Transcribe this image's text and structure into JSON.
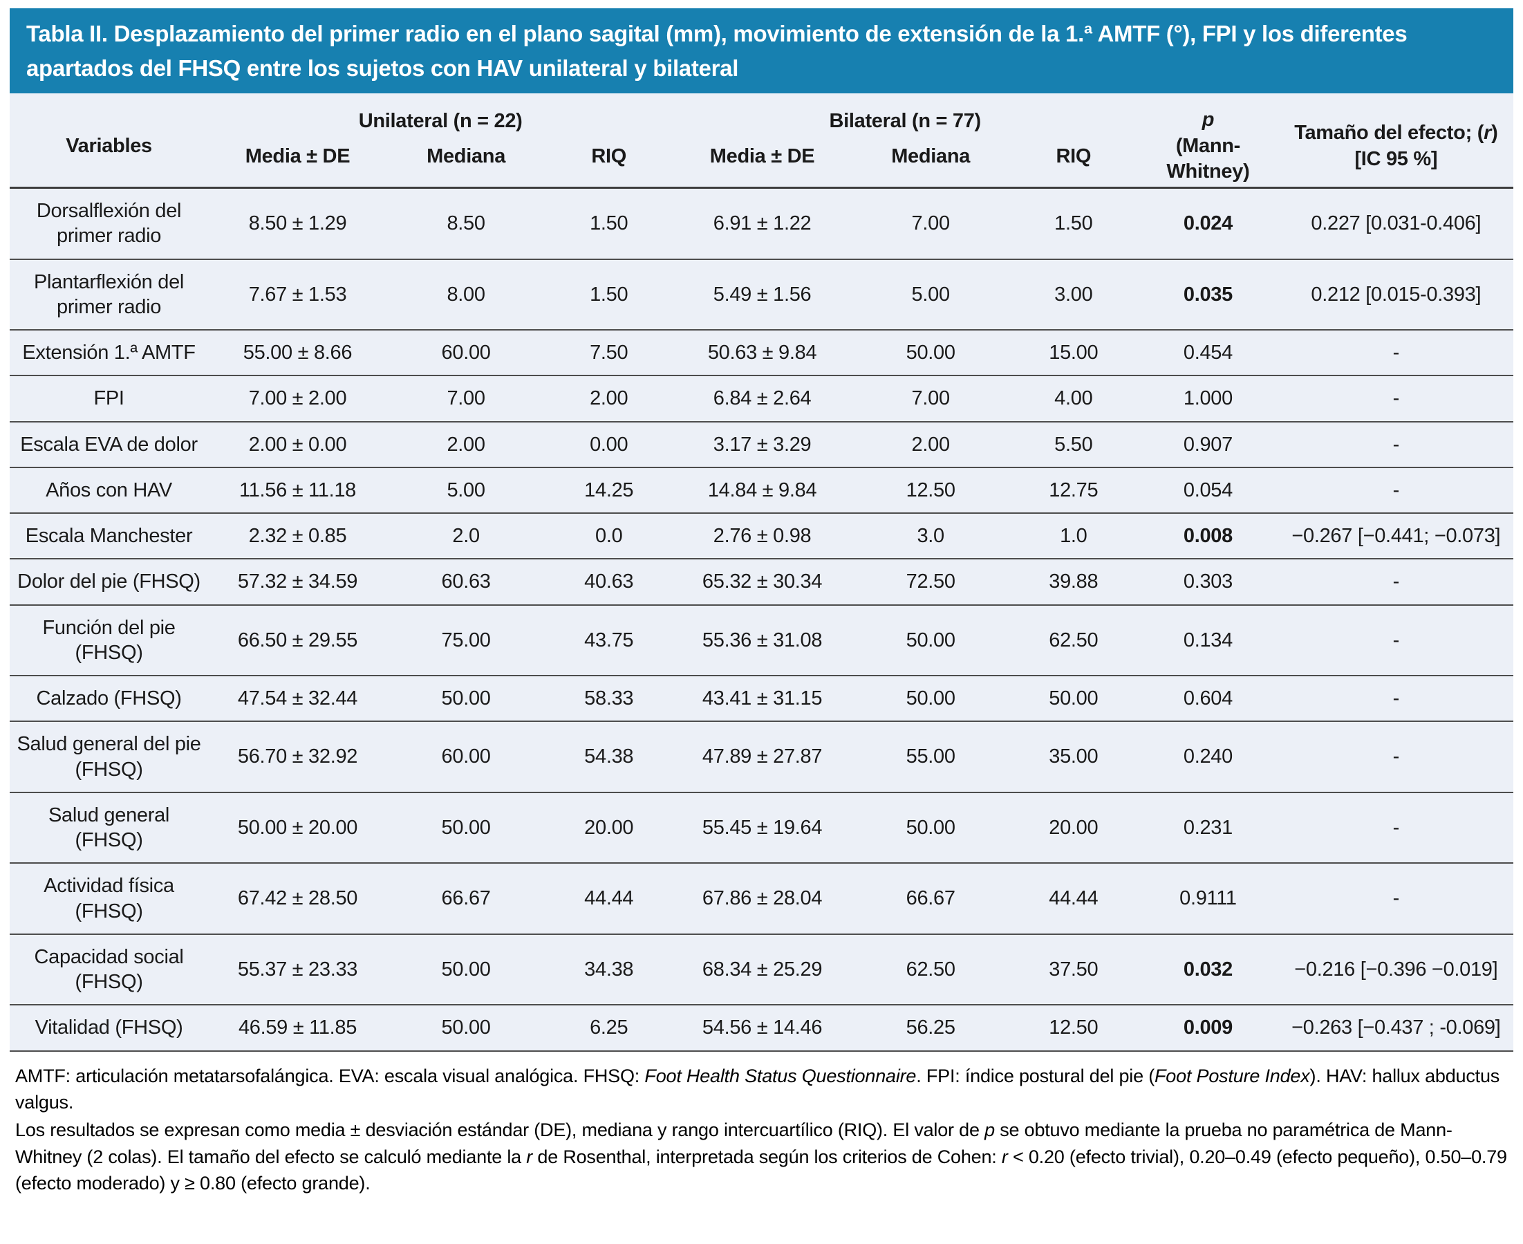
{
  "title": "Tabla II. Desplazamiento del primer radio en el plano sagital (mm), movimiento de extensión de la 1.ª AMTF (°), FPI y los diferentes apartados del FHSQ entre los sujetos con HAV unilateral y bilateral",
  "table": {
    "headers": {
      "variables": "Variables",
      "unilateral": "Unilateral (n = 22)",
      "bilateral": "Bilateral (n = 77)",
      "p_symbol": "p",
      "p_test": "(Mann-Whitney)",
      "effect_pre": "Tamaño del efecto; (",
      "effect_r": "r",
      "effect_post": ")",
      "effect_line2": "[IC 95 %]"
    },
    "sub_headers": [
      "Media ± DE",
      "Mediana",
      "RIQ",
      "Media ± DE",
      "Mediana",
      "RIQ"
    ],
    "rows": [
      {
        "variable": "Dorsalflexión del primer radio",
        "uni": [
          "8.50 ± 1.29",
          "8.50",
          "1.50"
        ],
        "bil": [
          "6.91 ± 1.22",
          "7.00",
          "1.50"
        ],
        "p": "0.024",
        "p_bold": true,
        "effect": "0.227 [0.031-0.406]"
      },
      {
        "variable": "Plantarflexión del primer radio",
        "uni": [
          "7.67 ± 1.53",
          "8.00",
          "1.50"
        ],
        "bil": [
          "5.49 ± 1.56",
          "5.00",
          "3.00"
        ],
        "p": "0.035",
        "p_bold": true,
        "effect": "0.212 [0.015-0.393]"
      },
      {
        "variable": "Extensión 1.ª AMTF",
        "uni": [
          "55.00 ± 8.66",
          "60.00",
          "7.50"
        ],
        "bil": [
          "50.63 ± 9.84",
          "50.00",
          "15.00"
        ],
        "p": "0.454",
        "p_bold": false,
        "effect": "-"
      },
      {
        "variable": "FPI",
        "uni": [
          "7.00 ± 2.00",
          "7.00",
          "2.00"
        ],
        "bil": [
          "6.84 ± 2.64",
          "7.00",
          "4.00"
        ],
        "p": "1.000",
        "p_bold": false,
        "effect": "-"
      },
      {
        "variable": "Escala EVA de dolor",
        "uni": [
          "2.00 ± 0.00",
          "2.00",
          "0.00"
        ],
        "bil": [
          "3.17 ± 3.29",
          "2.00",
          "5.50"
        ],
        "p": "0.907",
        "p_bold": false,
        "effect": "-"
      },
      {
        "variable": "Años con HAV",
        "uni": [
          "11.56 ± 11.18",
          "5.00",
          "14.25"
        ],
        "bil": [
          "14.84 ± 9.84",
          "12.50",
          "12.75"
        ],
        "p": "0.054",
        "p_bold": false,
        "effect": "-"
      },
      {
        "variable": "Escala Manchester",
        "uni": [
          "2.32 ± 0.85",
          "2.0",
          "0.0"
        ],
        "bil": [
          "2.76 ± 0.98",
          "3.0",
          "1.0"
        ],
        "p": "0.008",
        "p_bold": true,
        "effect": "−0.267 [−0.441; −0.073]"
      },
      {
        "variable": "Dolor del pie (FHSQ)",
        "uni": [
          "57.32 ± 34.59",
          "60.63",
          "40.63"
        ],
        "bil": [
          "65.32 ± 30.34",
          "72.50",
          "39.88"
        ],
        "p": "0.303",
        "p_bold": false,
        "effect": "-"
      },
      {
        "variable": "Función del pie (FHSQ)",
        "uni": [
          "66.50 ± 29.55",
          "75.00",
          "43.75"
        ],
        "bil": [
          "55.36 ± 31.08",
          "50.00",
          "62.50"
        ],
        "p": "0.134",
        "p_bold": false,
        "effect": "-"
      },
      {
        "variable": "Calzado (FHSQ)",
        "uni": [
          "47.54 ± 32.44",
          "50.00",
          "58.33"
        ],
        "bil": [
          "43.41 ± 31.15",
          "50.00",
          "50.00"
        ],
        "p": "0.604",
        "p_bold": false,
        "effect": "-"
      },
      {
        "variable": "Salud general del pie (FHSQ)",
        "uni": [
          "56.70 ± 32.92",
          "60.00",
          "54.38"
        ],
        "bil": [
          "47.89 ± 27.87",
          "55.00",
          "35.00"
        ],
        "p": "0.240",
        "p_bold": false,
        "effect": "-"
      },
      {
        "variable": "Salud general (FHSQ)",
        "uni": [
          "50.00 ± 20.00",
          "50.00",
          "20.00"
        ],
        "bil": [
          "55.45 ± 19.64",
          "50.00",
          "20.00"
        ],
        "p": "0.231",
        "p_bold": false,
        "effect": "-"
      },
      {
        "variable": "Actividad física (FHSQ)",
        "uni": [
          "67.42 ± 28.50",
          "66.67",
          "44.44"
        ],
        "bil": [
          "67.86 ± 28.04",
          "66.67",
          "44.44"
        ],
        "p": "0.9111",
        "p_bold": false,
        "effect": "-"
      },
      {
        "variable": "Capacidad social (FHSQ)",
        "uni": [
          "55.37 ± 23.33",
          "50.00",
          "34.38"
        ],
        "bil": [
          "68.34 ± 25.29",
          "62.50",
          "37.50"
        ],
        "p": "0.032",
        "p_bold": true,
        "effect": "−0.216 [−0.396 −0.019]"
      },
      {
        "variable": "Vitalidad (FHSQ)",
        "uni": [
          "46.59 ± 11.85",
          "50.00",
          "6.25"
        ],
        "bil": [
          "54.56 ± 14.46",
          "56.25",
          "12.50"
        ],
        "p": "0.009",
        "p_bold": true,
        "effect": "−0.263 [−0.437 ; -0.069]"
      }
    ]
  },
  "footnotes": [
    [
      {
        "t": "AMTF: articulación metatarsofalángica. EVA: escala visual analógica. FHSQ: "
      },
      {
        "t": "Foot Health Status Questionnaire",
        "i": true
      },
      {
        "t": ". FPI: índice postural del pie ("
      },
      {
        "t": "Foot Posture Index",
        "i": true
      },
      {
        "t": "). HAV: hallux abductus valgus."
      }
    ],
    [
      {
        "t": "Los resultados se expresan como media ± desviación estándar (DE), mediana y rango intercuartílico (RIQ). El valor de "
      },
      {
        "t": "p",
        "i": true
      },
      {
        "t": " se obtuvo mediante la prueba no paramétrica de Mann-Whitney (2 colas). El tamaño del efecto se calculó mediante la "
      },
      {
        "t": "r",
        "i": true
      },
      {
        "t": " de Rosenthal, interpretada según los criterios de Cohen: "
      },
      {
        "t": "r",
        "i": true
      },
      {
        "t": " < 0.20 (efecto trivial), 0.20–0.49 (efecto pequeño), 0.50–0.79 (efecto moderado) y ≥ 0.80 (efecto grande)."
      }
    ]
  ],
  "colors": {
    "title_bar": "#1780B0",
    "table_bg": "#ECF0F7",
    "separator": "#4d4d4d"
  }
}
